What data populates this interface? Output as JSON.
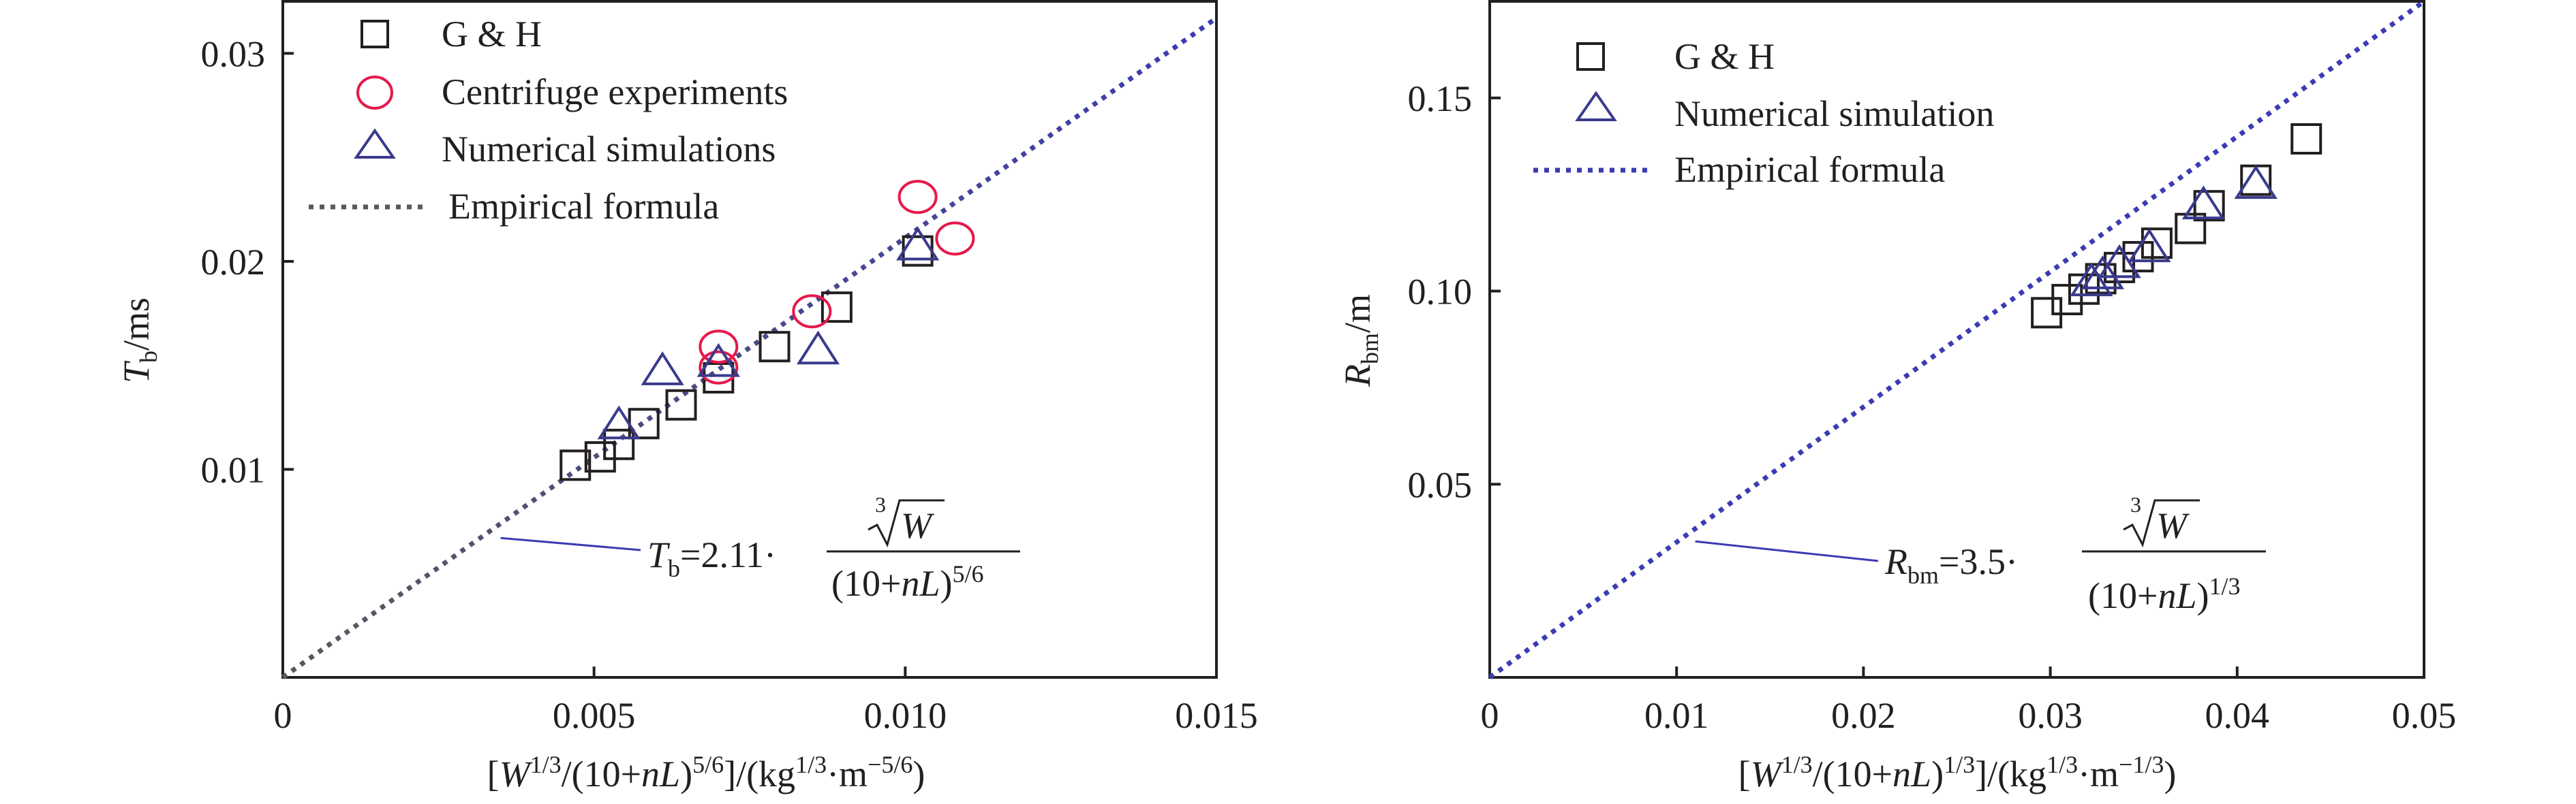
{
  "chart_data": [
    {
      "type": "scatter",
      "title": "",
      "xlabel": "[W^1/3/(10+nL)^5/6]/(kg^1/3·m^−5/6)",
      "ylabel": "Tb/ms",
      "xlim": [
        0,
        0.015
      ],
      "ylim": [
        0,
        0.0325
      ],
      "x_ticks": [
        0,
        0.005,
        0.01,
        0.015
      ],
      "x_tick_labels": [
        "0",
        "0.005",
        "0.010",
        "0.015"
      ],
      "y_ticks": [
        0.01,
        0.02,
        0.03
      ],
      "y_tick_labels": [
        "0.01",
        "0.02",
        "0.03"
      ],
      "legend_position": "top-left",
      "grid": false,
      "series": [
        {
          "name": "G & H",
          "marker": "square",
          "color": "#231f20",
          "points": [
            [
              0.0047,
              0.0102
            ],
            [
              0.0051,
              0.0106
            ],
            [
              0.0054,
              0.0112
            ],
            [
              0.0058,
              0.0122
            ],
            [
              0.0064,
              0.0131
            ],
            [
              0.007,
              0.0144
            ],
            [
              0.0079,
              0.0159
            ],
            [
              0.0089,
              0.0178
            ],
            [
              0.0102,
              0.0205
            ]
          ]
        },
        {
          "name": "Centrifuge experiments",
          "marker": "circle",
          "color": "#e6194b",
          "points": [
            [
              0.007,
              0.0159
            ],
            [
              0.007,
              0.0149
            ],
            [
              0.0085,
              0.0176
            ],
            [
              0.0102,
              0.0231
            ],
            [
              0.0108,
              0.0211
            ]
          ]
        },
        {
          "name": "Numerical simulations",
          "marker": "triangle",
          "color": "#3a3a8c",
          "points": [
            [
              0.0054,
              0.0121
            ],
            [
              0.0061,
              0.0147
            ],
            [
              0.007,
              0.0151
            ],
            [
              0.0086,
              0.0157
            ],
            [
              0.0102,
              0.0207
            ]
          ]
        },
        {
          "name": "Empirical formula",
          "line": "dotted",
          "color_start": "#58595b",
          "color_end": "#3b3bb3",
          "points": [
            [
              0,
              0
            ],
            [
              0.015,
              0.0317
            ]
          ]
        }
      ],
      "annotation": {
        "lhs_symbol": "T",
        "lhs_sub": "b",
        "coefficient": "=2.11·",
        "numerator_root_index": "3",
        "numerator_var": "W",
        "denominator_main": "(10+",
        "denominator_var": "nL",
        "denominator_close": ")",
        "denominator_exp": "5/6",
        "pointer_from": [
          0.0035,
          0.0067
        ]
      }
    },
    {
      "type": "scatter",
      "title": "",
      "xlabel": "[W^1/3/(10+nL)^1/3]/(kg^1/3·m^−1/3)",
      "ylabel": "Rbm/m",
      "xlim": [
        0,
        0.05
      ],
      "ylim": [
        0,
        0.175
      ],
      "x_ticks": [
        0,
        0.01,
        0.02,
        0.03,
        0.04,
        0.05
      ],
      "x_tick_labels": [
        "0",
        "0.01",
        "0.02",
        "0.03",
        "0.04",
        "0.05"
      ],
      "y_ticks": [
        0.05,
        0.1,
        0.15
      ],
      "y_tick_labels": [
        "0.05",
        "0.10",
        "0.15"
      ],
      "legend_position": "top-left",
      "grid": false,
      "series": [
        {
          "name": "G & H",
          "marker": "square",
          "color": "#231f20",
          "points": [
            [
              0.0298,
              0.0944
            ],
            [
              0.0309,
              0.0978
            ],
            [
              0.0318,
              0.1005
            ],
            [
              0.0327,
              0.1032
            ],
            [
              0.0337,
              0.1061
            ],
            [
              0.0347,
              0.1089
            ],
            [
              0.0357,
              0.1124
            ],
            [
              0.0375,
              0.1162
            ],
            [
              0.0385,
              0.1221
            ],
            [
              0.041,
              0.1287
            ],
            [
              0.0437,
              0.1394
            ]
          ]
        },
        {
          "name": "Numerical simulation",
          "marker": "triangle",
          "color": "#3a3a8c",
          "points": [
            [
              0.0322,
              0.1022
            ],
            [
              0.0328,
              0.104
            ],
            [
              0.0337,
              0.1069
            ],
            [
              0.0353,
              0.111
            ],
            [
              0.0382,
              0.1221
            ],
            [
              0.041,
              0.1274
            ]
          ]
        },
        {
          "name": "Empirical formula",
          "line": "dotted",
          "color_start": "#3b3bb3",
          "color_end": "#3b3bb3",
          "points": [
            [
              0,
              0
            ],
            [
              0.05,
              0.175
            ]
          ]
        }
      ],
      "annotation": {
        "lhs_symbol": "R",
        "lhs_sub": "bm",
        "coefficient": "=3.5·",
        "numerator_root_index": "3",
        "numerator_var": "W",
        "denominator_main": "(10+",
        "denominator_var": "nL",
        "denominator_close": ")",
        "denominator_exp": "1/3",
        "pointer_from": [
          0.011,
          0.0352
        ]
      }
    }
  ],
  "axis_text": {
    "left": {
      "y_var": "T",
      "y_sub": "b",
      "y_unit": "/ms",
      "x_parts": {
        "open": "[",
        "w": "W",
        "exp1": "1/3",
        "mid": "/(10+",
        "nl": "nL",
        "close": ")",
        "exp2": "5/6",
        "unit_open": "]/(kg",
        "exp3": "1/3",
        "unit_mid": "·m",
        "exp4": "−5/6",
        "unit_close": ")"
      }
    },
    "right": {
      "y_var": "R",
      "y_sub": "bm",
      "y_unit": "/m",
      "x_parts": {
        "open": "[",
        "w": "W",
        "exp1": "1/3",
        "mid": "/(10+",
        "nl": "nL",
        "close": ")",
        "exp2": "1/3",
        "unit_open": "]/(kg",
        "exp3": "1/3",
        "unit_mid": "·m",
        "exp4": "−1/3",
        "unit_close": ")"
      }
    }
  }
}
